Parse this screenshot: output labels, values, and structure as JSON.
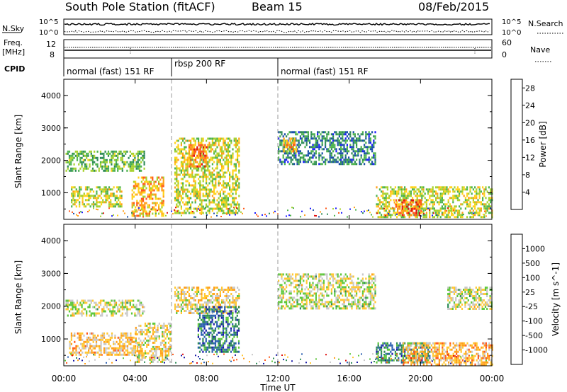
{
  "header": {
    "station_title": "South Pole Station (fitACF)",
    "beam": "Beam 15",
    "date": "08/Feb/2015"
  },
  "status_panels": {
    "nsky_label": "N.Sky",
    "nsearch_label": "N.Search",
    "noise_ticks": [
      "10^5",
      "10^0"
    ],
    "freq_label_1": "Freq.",
    "freq_label_2": "[MHz]",
    "freq_ticks": [
      "12",
      "8"
    ],
    "nave_label": "Nave",
    "nave_ticks": [
      "60",
      "0"
    ],
    "cpid_label": "CPID",
    "cpid_segments": [
      {
        "label": "normal (fast) 151 RF",
        "start_hour": 0,
        "end_hour": 6
      },
      {
        "label": "rbsp 200 RF",
        "start_hour": 6,
        "end_hour": 12
      },
      {
        "label": "normal (fast) 151 RF",
        "start_hour": 12,
        "end_hour": 24
      }
    ]
  },
  "axes": {
    "ylabel": "Slant Range [km]",
    "xlabel": "Time UT",
    "x_ticks": [
      "00:00",
      "04:00",
      "08:00",
      "12:00",
      "16:00",
      "20:00",
      "00:00"
    ],
    "y_ticks": [
      "1000",
      "2000",
      "3000",
      "4000"
    ]
  },
  "colors": {
    "power": [
      "#1a1aff",
      "#1a4fa8",
      "#2e8b57",
      "#4db34d",
      "#a6d12e",
      "#ffd21a",
      "#ff9f1a",
      "#ff5a1a",
      "#e01010"
    ],
    "velocity": [
      "#e01010",
      "#ff5a1a",
      "#ff9f1a",
      "#ffc833",
      "#c8c8c8",
      "#5ec73b",
      "#2e8b57",
      "#2a5fb0",
      "#1a1aa8"
    ]
  },
  "chart_data": [
    {
      "type": "heatmap",
      "title": "",
      "xlabel": "Time UT",
      "ylabel": "Slant Range [km]",
      "xlim": [
        0,
        24
      ],
      "ylim": [
        180,
        4500
      ],
      "colorbar": {
        "label": "Power [dB]",
        "ticks": [
          "4",
          "8",
          "12",
          "16",
          "20",
          "24",
          "28"
        ],
        "range": [
          0,
          30
        ]
      },
      "regions": [
        {
          "x": [
            0.1,
            4.5
          ],
          "y": [
            1700,
            2300
          ],
          "value": 12
        },
        {
          "x": [
            0.4,
            3.2
          ],
          "y": [
            600,
            1200
          ],
          "value": 16
        },
        {
          "x": [
            3.8,
            5.6
          ],
          "y": [
            300,
            1500
          ],
          "value": 20
        },
        {
          "x": [
            6.2,
            9.8
          ],
          "y": [
            400,
            2700
          ],
          "value": 16
        },
        {
          "x": [
            7.0,
            8.0
          ],
          "y": [
            1800,
            2500
          ],
          "value": 24
        },
        {
          "x": [
            12.0,
            17.5
          ],
          "y": [
            1900,
            2900
          ],
          "value": 8
        },
        {
          "x": [
            12.3,
            13.0
          ],
          "y": [
            2300,
            2700
          ],
          "value": 20
        },
        {
          "x": [
            17.5,
            24.0
          ],
          "y": [
            250,
            1200
          ],
          "value": 16
        },
        {
          "x": [
            18.5,
            20.0
          ],
          "y": [
            300,
            800
          ],
          "value": 24
        }
      ]
    },
    {
      "type": "heatmap",
      "title": "",
      "xlabel": "Time UT",
      "ylabel": "Slant Range [km]",
      "xlim": [
        0,
        24
      ],
      "ylim": [
        180,
        4500
      ],
      "colorbar": {
        "label": "Velocity [m s^-1]",
        "ticks": [
          "1000",
          "500",
          "100",
          "25",
          "-25",
          "-100",
          "-500",
          "-1000"
        ],
        "range": [
          -1250,
          1250
        ]
      },
      "regions": [
        {
          "x": [
            0.1,
            4.5
          ],
          "y": [
            1700,
            2200
          ],
          "value": 0
        },
        {
          "x": [
            0.3,
            4.0
          ],
          "y": [
            500,
            1200
          ],
          "value": -300
        },
        {
          "x": [
            4.0,
            6.0
          ],
          "y": [
            300,
            1500
          ],
          "value": -150
        },
        {
          "x": [
            6.2,
            9.8
          ],
          "y": [
            1800,
            2600
          ],
          "value": -200
        },
        {
          "x": [
            7.5,
            9.8
          ],
          "y": [
            600,
            2000
          ],
          "value": 700
        },
        {
          "x": [
            12.0,
            17.5
          ],
          "y": [
            1900,
            3000
          ],
          "value": 0
        },
        {
          "x": [
            17.5,
            20.5
          ],
          "y": [
            300,
            900
          ],
          "value": 600
        },
        {
          "x": [
            19.0,
            24.0
          ],
          "y": [
            200,
            900
          ],
          "value": -400
        },
        {
          "x": [
            21.5,
            24.0
          ],
          "y": [
            1900,
            2600
          ],
          "value": 0
        }
      ]
    }
  ]
}
